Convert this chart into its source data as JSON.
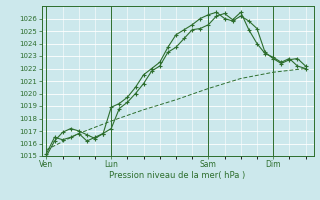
{
  "bg_color": "#cce8ec",
  "grid_color": "#ffffff",
  "line_color": "#2d6e2d",
  "title": "Pression niveau de la mer( hPa )",
  "ylim": [
    1015,
    1027
  ],
  "yticks": [
    1015,
    1016,
    1017,
    1018,
    1019,
    1020,
    1021,
    1022,
    1023,
    1024,
    1025,
    1026
  ],
  "xtick_labels": [
    "Ven",
    "Lun",
    "Sam",
    "Dim"
  ],
  "xtick_positions": [
    0,
    4,
    10,
    14
  ],
  "xlim": [
    -0.3,
    16.5
  ],
  "line1_x": [
    0,
    0.5,
    1.0,
    1.5,
    2.0,
    2.5,
    3.0,
    3.5,
    4.0,
    4.5,
    5.0,
    5.5,
    6.0,
    6.5,
    7.0,
    7.5,
    8.0,
    8.5,
    9.0,
    9.5,
    10.0,
    10.5,
    11.0,
    11.5,
    12.0,
    12.5,
    13.0,
    13.5,
    14.0,
    14.5,
    15.0,
    15.5,
    16.0
  ],
  "line1_y": [
    1015.0,
    1016.2,
    1016.9,
    1017.2,
    1017.0,
    1016.7,
    1016.4,
    1016.8,
    1017.2,
    1018.8,
    1019.3,
    1020.0,
    1020.8,
    1021.8,
    1022.2,
    1023.3,
    1023.7,
    1024.4,
    1025.1,
    1025.2,
    1025.5,
    1026.2,
    1026.4,
    1025.9,
    1026.5,
    1025.1,
    1024.0,
    1023.2,
    1022.9,
    1022.5,
    1022.8,
    1022.2,
    1022.0
  ],
  "line2_x": [
    0,
    0.5,
    1.0,
    1.5,
    2.0,
    2.5,
    3.0,
    3.5,
    4.0,
    4.5,
    5.0,
    5.5,
    6.0,
    6.5,
    7.0,
    7.5,
    8.0,
    8.5,
    9.0,
    9.5,
    10.0,
    10.5,
    11.0,
    11.5,
    12.0,
    12.5,
    13.0,
    13.5,
    14.0,
    14.5,
    15.0,
    15.5,
    16.0
  ],
  "line2_y": [
    1015.2,
    1016.5,
    1016.3,
    1016.5,
    1016.8,
    1016.2,
    1016.5,
    1016.8,
    1018.9,
    1019.2,
    1019.7,
    1020.5,
    1021.5,
    1022.0,
    1022.5,
    1023.7,
    1024.7,
    1025.1,
    1025.5,
    1026.0,
    1026.3,
    1026.5,
    1026.0,
    1025.8,
    1026.2,
    1025.8,
    1025.2,
    1023.3,
    1022.8,
    1022.4,
    1022.7,
    1022.8,
    1022.2
  ],
  "line3_x": [
    0,
    2,
    4,
    6,
    8,
    10,
    12,
    14,
    16
  ],
  "line3_y": [
    1015.5,
    1016.8,
    1017.8,
    1018.7,
    1019.5,
    1020.4,
    1021.2,
    1021.7,
    1022.0
  ],
  "vline_positions": [
    0,
    4,
    10,
    14
  ],
  "marker": "+"
}
